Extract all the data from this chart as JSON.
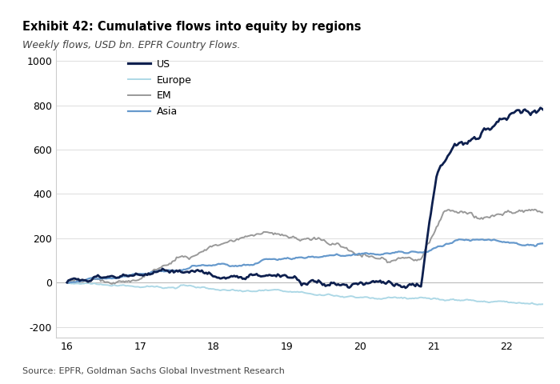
{
  "title_bold": "Exhibit 42: Cumulative flows into equity by regions",
  "subtitle": "Weekly flows, USD bn. EPFR Country Flows.",
  "source": "Source: EPFR, Goldman Sachs Global Investment Research",
  "xlim": [
    15.85,
    22.5
  ],
  "ylim": [
    -250,
    1050
  ],
  "yticks": [
    -200,
    0,
    200,
    400,
    600,
    800,
    1000
  ],
  "xticks": [
    16,
    17,
    18,
    19,
    20,
    21,
    22
  ],
  "colors": {
    "US": "#0d1f4e",
    "Europe": "#add8e6",
    "EM": "#999999",
    "Asia": "#6699cc"
  },
  "linewidths": {
    "US": 2.0,
    "Europe": 1.4,
    "EM": 1.4,
    "Asia": 1.6
  },
  "background_color": "#ffffff",
  "plot_bg": "#ffffff",
  "grid_color": "#dddddd"
}
